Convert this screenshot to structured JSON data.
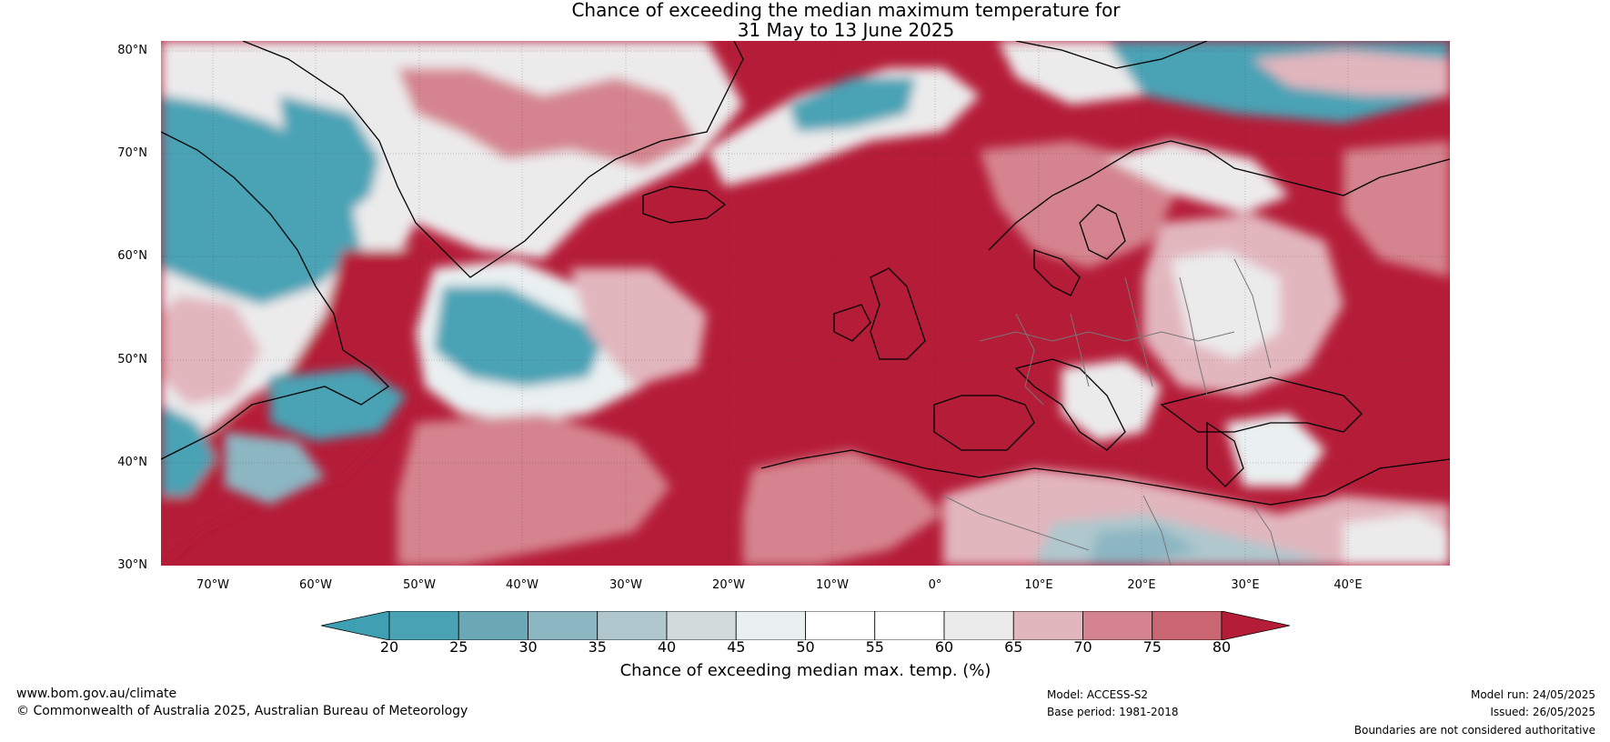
{
  "title": {
    "line1": "Chance of exceeding the median maximum temperature for",
    "line2": "31 May to 13 June 2025"
  },
  "map": {
    "region": "North Atlantic and Europe",
    "latitude_labels": [
      "80°N",
      "70°N",
      "60°N",
      "50°N",
      "40°N",
      "30°N"
    ],
    "longitude_labels": [
      "70°W",
      "60°W",
      "50°W",
      "40°W",
      "30°W",
      "20°W",
      "10°W",
      "0°",
      "10°E",
      "20°E",
      "30°E",
      "40°E"
    ]
  },
  "colorbar": {
    "ticks": [
      "20",
      "25",
      "30",
      "35",
      "40",
      "45",
      "50",
      "55",
      "60",
      "65",
      "70",
      "75",
      "80"
    ],
    "colors": [
      "#4aa3b5",
      "#6aa8b6",
      "#8cb6c2",
      "#afc7cd",
      "#d2dbdc",
      "#eaf0f1",
      "#ffffff",
      "#ffffff",
      "#ecebec",
      "#e2b6bd",
      "#d5848f",
      "#c96672",
      "#bf4659"
    ],
    "under_color": "#3fa0b4",
    "over_color": "#b51c38",
    "label": "Chance of exceeding median max. temp. (%)"
  },
  "footer": {
    "website": "www.bom.gov.au/climate",
    "copyright": "© Commonwealth of Australia 2025, Australian Bureau of Meteorology",
    "model": "Model: ACCESS-S2",
    "base_period": "Base period: 1981-2018",
    "model_run": "Model run: 24/05/2025",
    "issued": "Issued: 26/05/2025",
    "disclaimer": "Boundaries are not considered authoritative"
  }
}
